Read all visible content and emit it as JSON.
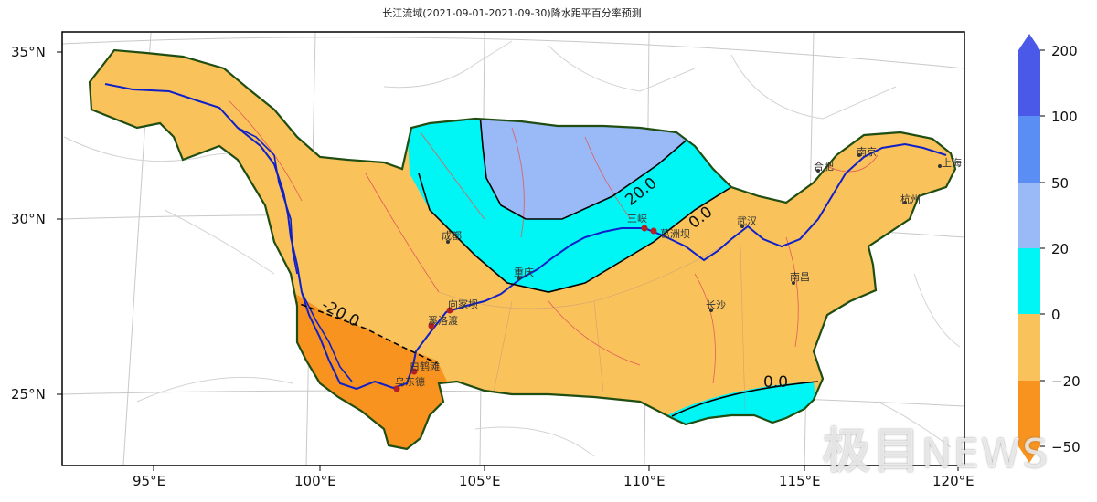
{
  "title": "长江流域(2021-09-01-2021-09-30)降水距平百分率预测",
  "lat_ticks": [
    "35°N",
    "30°N",
    "25°N"
  ],
  "lon_ticks": [
    "95°E",
    "100°E",
    "105°E",
    "110°E",
    "115°E",
    "120°E"
  ],
  "colorbar": {
    "ticks": [
      "200",
      "100",
      "50",
      "20",
      "0",
      "−20",
      "−50"
    ],
    "bands": [
      {
        "range": "100~200",
        "color": "#4b59e8"
      },
      {
        "range": "50~100",
        "color": "#5b8ef5"
      },
      {
        "range": "20~50",
        "color": "#99b9f7"
      },
      {
        "range": "0~20",
        "color": "#00f5f5"
      },
      {
        "range": "-20~0",
        "color": "#f9c25a"
      },
      {
        "range": "-50~-20",
        "color": "#f7931e"
      }
    ]
  },
  "contour_labels": [
    "20.0",
    "0.0",
    "-20.0",
    "0.0"
  ],
  "cities": [
    "成都",
    "重庆",
    "三峡",
    "葛洲坝",
    "武汉",
    "长沙",
    "南昌",
    "合肥",
    "南京",
    "杭州",
    "上海",
    "向家坝",
    "溪洛渡",
    "白鹤滩",
    "乌东德"
  ],
  "watermark": {
    "main": "极目",
    "sub": "NEWS"
  },
  "colors": {
    "basin_outline": "#1f4d12",
    "river": "#1020c8",
    "frame": "#000000"
  }
}
